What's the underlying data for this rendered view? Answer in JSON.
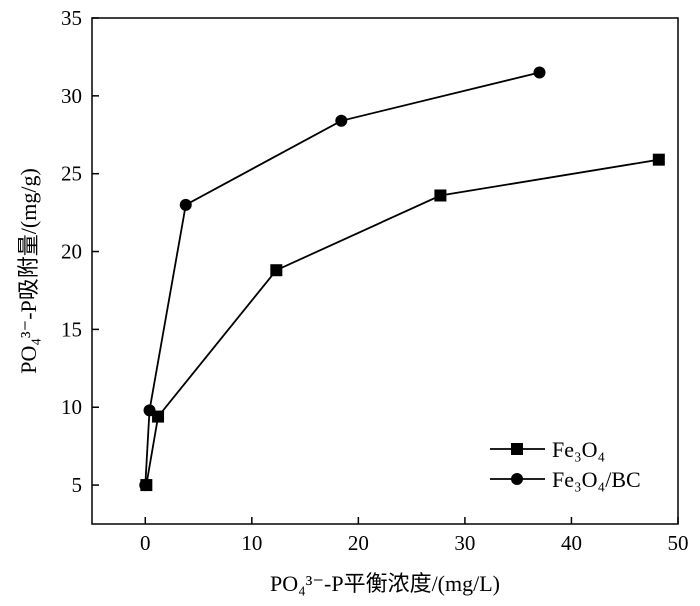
{
  "chart_data": {
    "type": "line",
    "xlabel": "PO₄³⁻-P平衡浓度/(mg/L)",
    "ylabel": "PO₄³⁻-P吸附量/(mg/g)",
    "xlim": [
      -5,
      50
    ],
    "ylim": [
      2.5,
      35
    ],
    "x_ticks": [
      0,
      10,
      20,
      30,
      40,
      50
    ],
    "y_ticks": [
      5,
      10,
      15,
      20,
      25,
      30,
      35
    ],
    "x_tick_labels": [
      "0",
      "10",
      "20",
      "30",
      "40",
      "50"
    ],
    "y_tick_labels": [
      "5",
      "10",
      "15",
      "20",
      "25",
      "30",
      "35"
    ],
    "grid": false,
    "legend_position": "bottom-right",
    "series": [
      {
        "name": "Fe₃O₄",
        "marker": "square",
        "color": "#000000",
        "points": [
          {
            "x": 0.1,
            "y": 5.0
          },
          {
            "x": 1.2,
            "y": 9.4
          },
          {
            "x": 12.3,
            "y": 18.8
          },
          {
            "x": 27.7,
            "y": 23.6
          },
          {
            "x": 48.2,
            "y": 25.9
          }
        ]
      },
      {
        "name": "Fe₃O₄/BC",
        "marker": "circle",
        "color": "#000000",
        "points": [
          {
            "x": 0.0,
            "y": 5.0
          },
          {
            "x": 0.4,
            "y": 9.8
          },
          {
            "x": 3.8,
            "y": 23.0
          },
          {
            "x": 18.4,
            "y": 28.4
          },
          {
            "x": 37.0,
            "y": 31.5
          }
        ]
      }
    ]
  }
}
